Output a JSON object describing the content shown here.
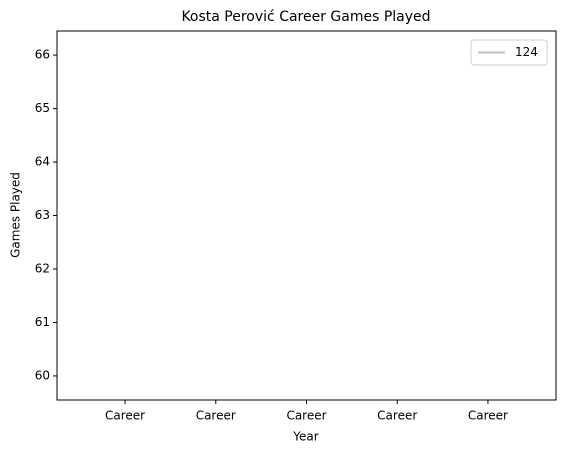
{
  "chart_data": {
    "type": "line",
    "title": "Kosta Perović Career Games Played",
    "xlabel": "Year",
    "ylabel": "Games Played",
    "categories": [
      "Career",
      "Career",
      "Career",
      "Career",
      "Career"
    ],
    "series": [
      {
        "name": "124",
        "color": "#bfbfbf",
        "values": [
          null,
          null,
          null,
          null,
          null
        ]
      }
    ],
    "ylim": [
      59.55,
      66.45
    ],
    "yticks": [
      60,
      61,
      62,
      63,
      64,
      65,
      66
    ],
    "legend": "upper right"
  }
}
